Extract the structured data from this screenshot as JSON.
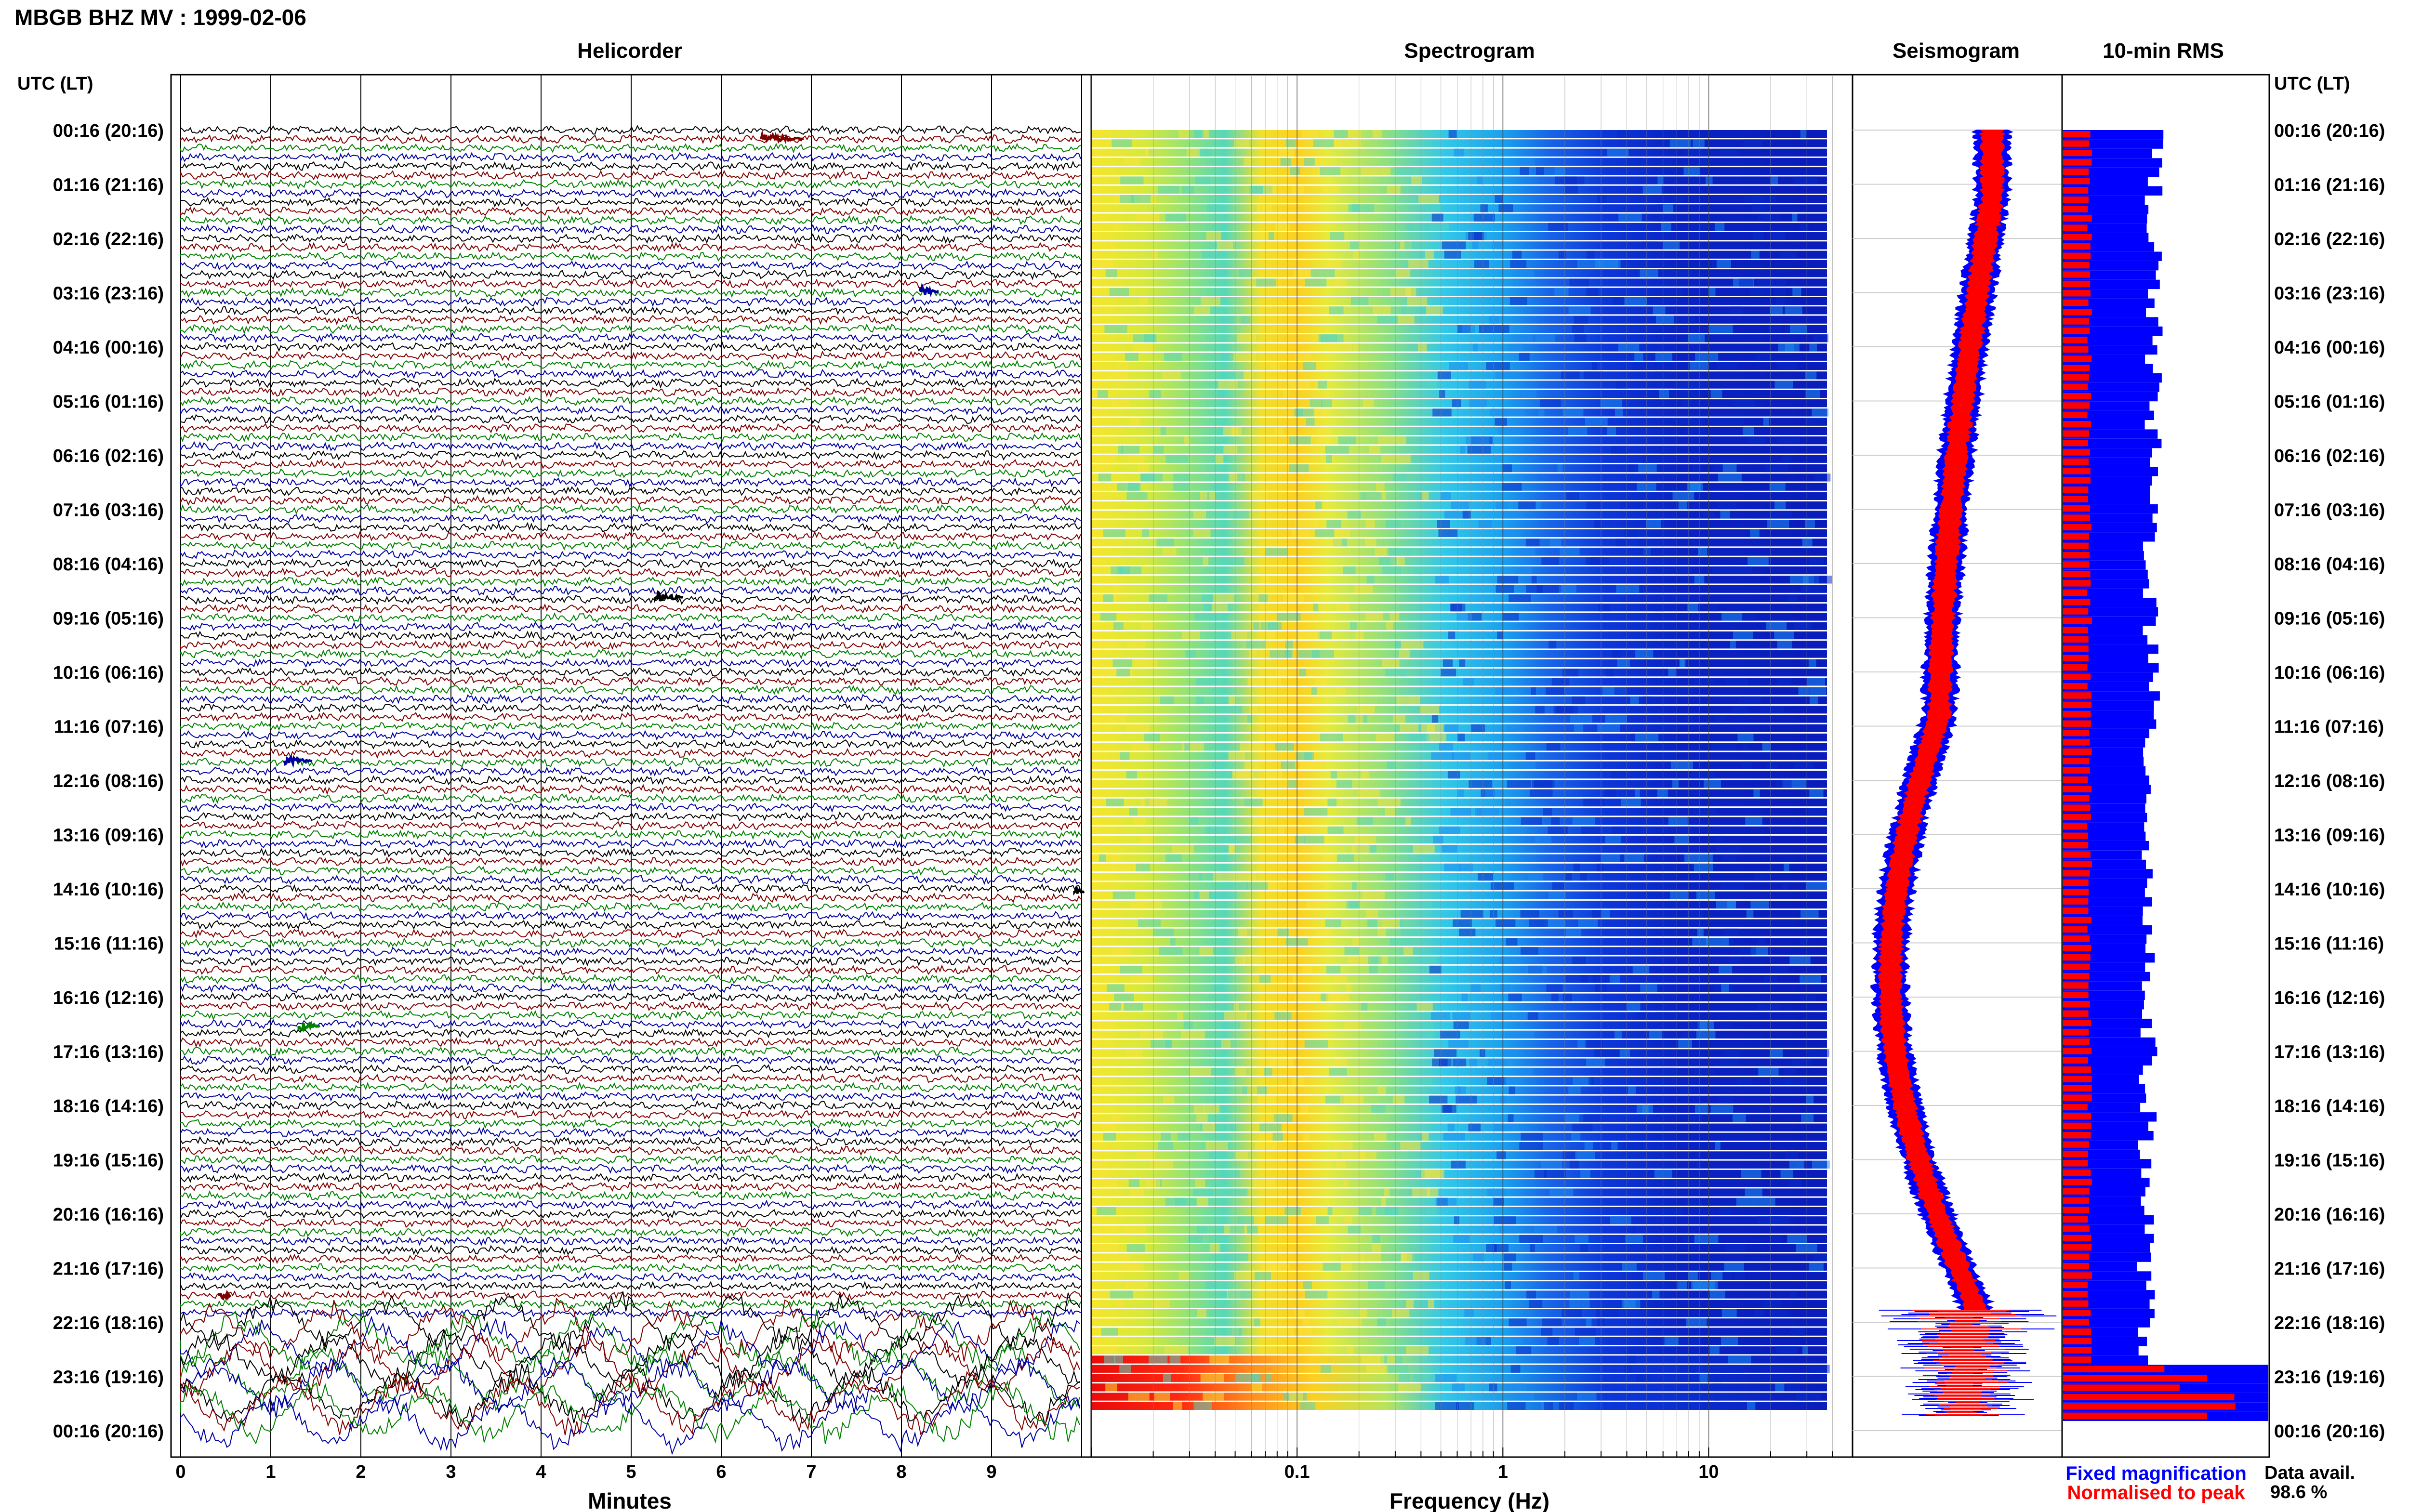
{
  "header": {
    "title": "MBGB BHZ MV : 1999-02-06",
    "axis_label_left": "UTC (LT)",
    "axis_label_right": "UTC (LT)"
  },
  "panels": {
    "helicorder": {
      "title": "Helicorder",
      "xlabel": "Minutes"
    },
    "spectrogram": {
      "title": "Spectrogram",
      "xlabel": "Frequency (Hz)"
    },
    "seismogram": {
      "title": "Seismogram"
    },
    "rms": {
      "title": "10-min RMS"
    }
  },
  "legend": {
    "fixed": "Fixed magnification",
    "normalised": "Normalised to peak",
    "data_avail_label": "Data avail.",
    "data_avail_value": "98.6 %"
  },
  "colors": {
    "fixed": "#0000ff",
    "normalised": "#ff0000",
    "trace_cycle": [
      "#000000",
      "#800000",
      "#008000",
      "#0000a0"
    ]
  },
  "chart_data": [
    {
      "type": "line",
      "name": "helicorder",
      "title": "Helicorder",
      "xlabel": "Minutes",
      "x_ticks": [
        0,
        1,
        2,
        3,
        4,
        5,
        6,
        7,
        8,
        9
      ],
      "xlim": [
        0,
        10
      ],
      "time_labels": [
        "00:16 (20:16)",
        "01:16 (21:16)",
        "02:16 (22:16)",
        "03:16 (23:16)",
        "04:16 (00:16)",
        "05:16 (01:16)",
        "06:16 (02:16)",
        "07:16 (03:16)",
        "08:16 (04:16)",
        "09:16 (05:16)",
        "10:16 (06:16)",
        "11:16 (07:16)",
        "12:16 (08:16)",
        "13:16 (09:16)",
        "14:16 (10:16)",
        "15:16 (11:16)",
        "16:16 (12:16)",
        "17:16 (13:16)",
        "18:16 (14:16)",
        "19:16 (15:16)",
        "20:16 (16:16)",
        "21:16 (17:16)",
        "22:16 (18:16)",
        "23:16 (19:16)",
        "00:16 (20:16)"
      ],
      "traces_per_hour": 6,
      "noise_increase_from_hour": 22
    },
    {
      "type": "heatmap",
      "name": "spectrogram",
      "title": "Spectrogram",
      "xlabel": "Frequency (Hz)",
      "x_scale": "log",
      "xlim": [
        0.01,
        50
      ],
      "x_tick_labels": [
        "0.1",
        "1",
        "10"
      ],
      "x_tick_values": [
        0.1,
        1,
        10
      ]
    },
    {
      "type": "line",
      "name": "seismogram",
      "title": "Seismogram",
      "series": [
        {
          "name": "Fixed magnification",
          "color": "#0000ff"
        },
        {
          "name": "Normalised to peak",
          "color": "#ff0000"
        }
      ]
    },
    {
      "type": "bar",
      "name": "10-min RMS",
      "title": "10-min RMS",
      "orientation": "horizontal",
      "rows": 138,
      "high_amplitude_from_row": 132,
      "series": [
        {
          "name": "Fixed magnification",
          "color": "#0000ff"
        },
        {
          "name": "Normalised to peak",
          "color": "#ff0000"
        }
      ]
    }
  ]
}
